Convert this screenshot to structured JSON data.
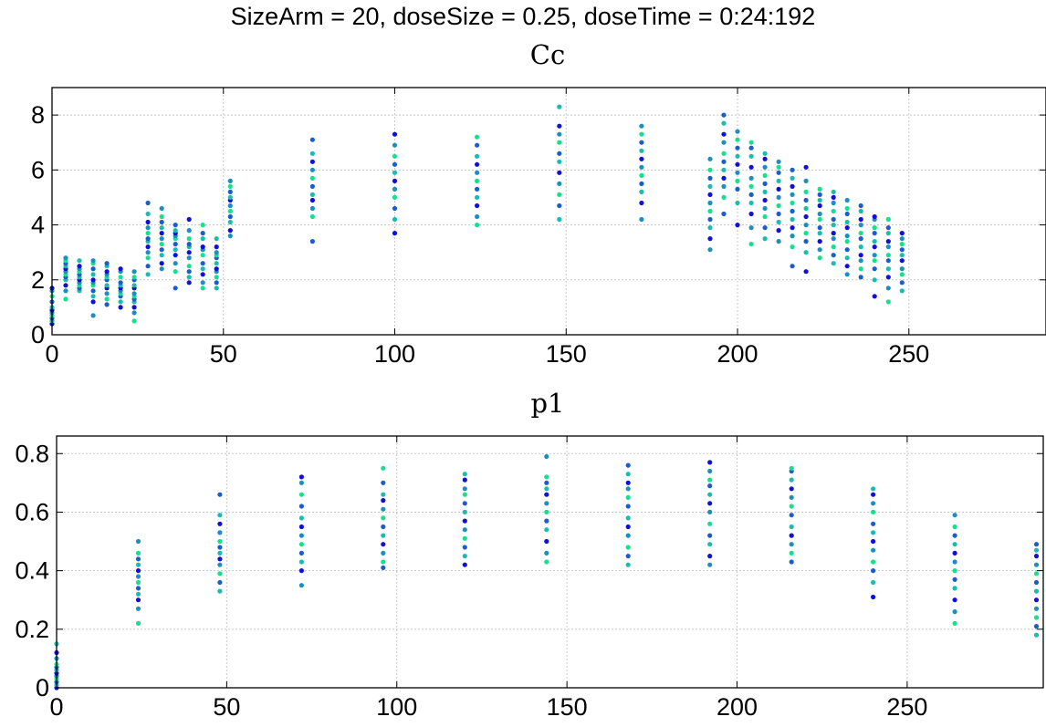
{
  "figure": {
    "suptitle": "SizeArm = 20, doseSize = 0.25, doseTime = 0:24:192"
  },
  "chart_data": [
    {
      "type": "scatter",
      "title": "Cc",
      "xlim": [
        0,
        290
      ],
      "ylim": [
        0,
        9
      ],
      "xticks": [
        0,
        50,
        100,
        150,
        200,
        250
      ],
      "yticks": [
        0,
        2,
        4,
        6,
        8
      ],
      "grid": true,
      "colors": [
        "#1010d8",
        "#1c5ccc",
        "#1d8fbf",
        "#1bbcb0",
        "#14e08e"
      ],
      "series": [
        {
          "x": 0,
          "y": [
            0.4,
            0.5,
            0.6,
            0.7,
            0.8,
            0.9,
            1.0,
            1.2,
            1.4,
            1.6,
            1.7
          ]
        },
        {
          "x": 4,
          "y": [
            1.3,
            1.6,
            1.8,
            2.0,
            2.1,
            2.2,
            2.3,
            2.4,
            2.5,
            2.6,
            2.7,
            2.8
          ]
        },
        {
          "x": 8,
          "y": [
            1.6,
            1.7,
            1.8,
            1.9,
            2.0,
            2.1,
            2.2,
            2.3,
            2.4,
            2.5,
            2.7
          ]
        },
        {
          "x": 12,
          "y": [
            0.7,
            1.2,
            1.4,
            1.6,
            1.8,
            1.9,
            2.0,
            2.2,
            2.4,
            2.6,
            2.7
          ]
        },
        {
          "x": 16,
          "y": [
            1.1,
            1.3,
            1.5,
            1.7,
            1.8,
            2.0,
            2.1,
            2.2,
            2.3,
            2.5,
            2.6
          ]
        },
        {
          "x": 20,
          "y": [
            1.0,
            1.2,
            1.4,
            1.5,
            1.6,
            1.7,
            1.8,
            1.9,
            2.1,
            2.3,
            2.4
          ]
        },
        {
          "x": 24,
          "y": [
            0.5,
            0.8,
            1.0,
            1.2,
            1.3,
            1.4,
            1.5,
            1.7,
            1.8,
            2.0,
            2.1,
            2.3
          ]
        },
        {
          "x": 28,
          "y": [
            2.2,
            2.5,
            2.8,
            3.0,
            3.2,
            3.4,
            3.5,
            3.7,
            3.9,
            4.1,
            4.4,
            4.8
          ]
        },
        {
          "x": 32,
          "y": [
            2.4,
            2.6,
            2.9,
            3.1,
            3.3,
            3.5,
            3.7,
            3.9,
            4.1,
            4.3,
            4.6
          ]
        },
        {
          "x": 36,
          "y": [
            1.7,
            2.3,
            2.6,
            2.9,
            3.1,
            3.3,
            3.5,
            3.6,
            3.7,
            3.8,
            4.0
          ]
        },
        {
          "x": 40,
          "y": [
            1.9,
            2.1,
            2.3,
            2.5,
            2.8,
            3.0,
            3.2,
            3.3,
            3.5,
            3.8,
            4.2
          ]
        },
        {
          "x": 44,
          "y": [
            1.7,
            1.9,
            2.2,
            2.4,
            2.6,
            2.9,
            3.1,
            3.2,
            3.5,
            3.7,
            4.0
          ]
        },
        {
          "x": 48,
          "y": [
            1.7,
            1.9,
            2.1,
            2.3,
            2.4,
            2.6,
            2.8,
            2.9,
            3.0,
            3.2,
            3.5
          ]
        },
        {
          "x": 52,
          "y": [
            3.6,
            3.8,
            4.1,
            4.3,
            4.5,
            4.7,
            4.9,
            5.0,
            5.2,
            5.4,
            5.6
          ]
        },
        {
          "x": 76,
          "y": [
            3.4,
            4.3,
            4.6,
            4.9,
            5.1,
            5.4,
            5.7,
            6.0,
            6.3,
            6.6,
            7.1
          ]
        },
        {
          "x": 100,
          "y": [
            3.7,
            4.2,
            4.6,
            5.0,
            5.3,
            5.6,
            5.9,
            6.2,
            6.5,
            6.9,
            7.3
          ]
        },
        {
          "x": 124,
          "y": [
            4.0,
            4.3,
            4.7,
            5.0,
            5.3,
            5.6,
            5.9,
            6.2,
            6.5,
            6.9,
            7.2
          ]
        },
        {
          "x": 148,
          "y": [
            4.2,
            4.7,
            5.1,
            5.5,
            5.9,
            6.3,
            6.6,
            7.0,
            7.3,
            7.6,
            8.3
          ]
        },
        {
          "x": 172,
          "y": [
            4.2,
            4.8,
            5.2,
            5.5,
            5.8,
            6.1,
            6.4,
            6.7,
            7.0,
            7.3,
            7.6
          ]
        },
        {
          "x": 192,
          "y": [
            3.1,
            3.5,
            3.9,
            4.2,
            4.5,
            4.8,
            5.1,
            5.4,
            5.7,
            6.0,
            6.4
          ]
        },
        {
          "x": 196,
          "y": [
            4.4,
            5.0,
            5.4,
            5.7,
            6.0,
            6.3,
            6.6,
            7.0,
            7.3,
            7.7,
            8.0
          ]
        },
        {
          "x": 200,
          "y": [
            4.0,
            4.8,
            5.3,
            5.6,
            5.9,
            6.2,
            6.5,
            6.8,
            7.1,
            7.4
          ]
        },
        {
          "x": 204,
          "y": [
            3.3,
            3.9,
            4.4,
            4.8,
            5.1,
            5.4,
            5.7,
            6.1,
            6.5,
            6.8,
            7.0
          ]
        },
        {
          "x": 208,
          "y": [
            3.5,
            3.9,
            4.3,
            4.6,
            4.9,
            5.2,
            5.5,
            5.8,
            6.1,
            6.4,
            6.6
          ]
        },
        {
          "x": 212,
          "y": [
            3.4,
            3.8,
            4.1,
            4.4,
            4.7,
            5.0,
            5.3,
            5.6,
            5.9,
            6.1,
            6.3
          ]
        },
        {
          "x": 216,
          "y": [
            2.5,
            3.2,
            3.6,
            3.9,
            4.2,
            4.5,
            4.8,
            5.1,
            5.4,
            5.7,
            6.0
          ]
        },
        {
          "x": 220,
          "y": [
            2.3,
            3.0,
            3.4,
            3.7,
            4.0,
            4.3,
            4.6,
            4.9,
            5.2,
            5.6,
            6.1
          ]
        },
        {
          "x": 224,
          "y": [
            2.8,
            3.1,
            3.4,
            3.7,
            3.9,
            4.2,
            4.4,
            4.7,
            4.9,
            5.1,
            5.3
          ]
        },
        {
          "x": 228,
          "y": [
            2.6,
            2.9,
            3.2,
            3.5,
            3.7,
            4.0,
            4.2,
            4.5,
            4.8,
            5.0,
            5.2
          ]
        },
        {
          "x": 232,
          "y": [
            2.2,
            2.5,
            2.8,
            3.1,
            3.4,
            3.6,
            3.9,
            4.1,
            4.4,
            4.6,
            4.9
          ]
        },
        {
          "x": 236,
          "y": [
            2.1,
            2.4,
            2.7,
            2.9,
            3.2,
            3.5,
            3.7,
            4.0,
            4.2,
            4.5,
            4.7
          ]
        },
        {
          "x": 240,
          "y": [
            1.4,
            2.0,
            2.4,
            2.7,
            2.9,
            3.2,
            3.4,
            3.7,
            3.9,
            4.2,
            4.3
          ]
        },
        {
          "x": 244,
          "y": [
            1.2,
            1.7,
            2.1,
            2.4,
            2.7,
            2.9,
            3.2,
            3.4,
            3.7,
            3.9,
            4.2
          ]
        },
        {
          "x": 248,
          "y": [
            1.6,
            1.9,
            2.2,
            2.4,
            2.7,
            2.9,
            3.1,
            3.3,
            3.5,
            3.7
          ]
        }
      ]
    },
    {
      "type": "scatter",
      "title": "p1",
      "xlim": [
        0,
        290
      ],
      "ylim": [
        0,
        0.86
      ],
      "xticks": [
        0,
        50,
        100,
        150,
        200,
        250
      ],
      "yticks": [
        0,
        0.2,
        0.4,
        0.6,
        0.8
      ],
      "grid": true,
      "colors": [
        "#1010d8",
        "#1c5ccc",
        "#1d8fbf",
        "#1bbcb0",
        "#14e08e"
      ],
      "series": [
        {
          "x": 0,
          "y": [
            0.0,
            0.01,
            0.02,
            0.03,
            0.04,
            0.05,
            0.06,
            0.07,
            0.08,
            0.1,
            0.12,
            0.15
          ]
        },
        {
          "x": 24,
          "y": [
            0.22,
            0.27,
            0.3,
            0.32,
            0.34,
            0.36,
            0.38,
            0.4,
            0.42,
            0.44,
            0.46,
            0.5
          ]
        },
        {
          "x": 48,
          "y": [
            0.33,
            0.36,
            0.39,
            0.42,
            0.44,
            0.46,
            0.48,
            0.5,
            0.53,
            0.56,
            0.59,
            0.66
          ]
        },
        {
          "x": 72,
          "y": [
            0.35,
            0.4,
            0.43,
            0.46,
            0.49,
            0.52,
            0.55,
            0.58,
            0.62,
            0.66,
            0.7,
            0.72
          ]
        },
        {
          "x": 96,
          "y": [
            0.41,
            0.43,
            0.46,
            0.49,
            0.52,
            0.55,
            0.58,
            0.61,
            0.64,
            0.66,
            0.7,
            0.75
          ]
        },
        {
          "x": 120,
          "y": [
            0.42,
            0.45,
            0.48,
            0.51,
            0.54,
            0.57,
            0.6,
            0.63,
            0.66,
            0.68,
            0.71,
            0.73
          ]
        },
        {
          "x": 144,
          "y": [
            0.43,
            0.46,
            0.5,
            0.54,
            0.57,
            0.6,
            0.63,
            0.66,
            0.68,
            0.7,
            0.72,
            0.79
          ]
        },
        {
          "x": 168,
          "y": [
            0.42,
            0.45,
            0.48,
            0.52,
            0.55,
            0.58,
            0.62,
            0.65,
            0.68,
            0.7,
            0.73,
            0.76
          ]
        },
        {
          "x": 192,
          "y": [
            0.42,
            0.45,
            0.49,
            0.52,
            0.56,
            0.6,
            0.63,
            0.66,
            0.69,
            0.71,
            0.74,
            0.77
          ]
        },
        {
          "x": 216,
          "y": [
            0.43,
            0.46,
            0.49,
            0.52,
            0.55,
            0.59,
            0.62,
            0.65,
            0.68,
            0.71,
            0.74,
            0.75
          ]
        },
        {
          "x": 240,
          "y": [
            0.31,
            0.36,
            0.4,
            0.43,
            0.47,
            0.5,
            0.53,
            0.56,
            0.6,
            0.63,
            0.66,
            0.68
          ]
        },
        {
          "x": 264,
          "y": [
            0.22,
            0.26,
            0.3,
            0.34,
            0.37,
            0.4,
            0.43,
            0.46,
            0.49,
            0.52,
            0.55,
            0.59
          ]
        },
        {
          "x": 288,
          "y": [
            0.18,
            0.21,
            0.24,
            0.27,
            0.3,
            0.33,
            0.36,
            0.39,
            0.42,
            0.45,
            0.47,
            0.49
          ]
        }
      ]
    }
  ]
}
